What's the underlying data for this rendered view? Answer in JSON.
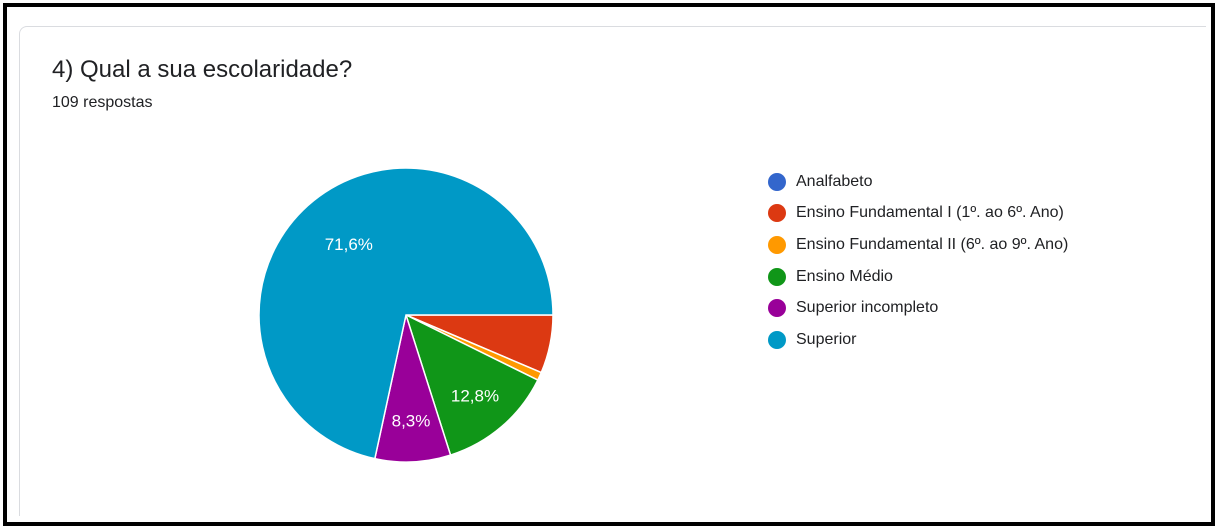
{
  "question": {
    "title": "4) Qual a sua escolaridade?",
    "responses": "109 respostas"
  },
  "chart_data": {
    "type": "pie",
    "title": "",
    "legend_position": "right",
    "slices": [
      {
        "name": "Analfabeto",
        "value": 0.0,
        "label": "",
        "color": "#3366cc"
      },
      {
        "name": "Ensino Fundamental I (1º. ao 6º. Ano)",
        "value": 6.4,
        "label": "",
        "color": "#dc3912"
      },
      {
        "name": "Ensino Fundamental II (6º. ao 9º. Ano)",
        "value": 0.9,
        "label": "",
        "color": "#ff9900"
      },
      {
        "name": "Ensino Médio",
        "value": 12.8,
        "label": "12,8%",
        "color": "#109618"
      },
      {
        "name": "Superior incompleto",
        "value": 8.3,
        "label": "8,3%",
        "color": "#990099"
      },
      {
        "name": "Superior",
        "value": 71.6,
        "label": "71,6%",
        "color": "#0099c6"
      }
    ]
  }
}
